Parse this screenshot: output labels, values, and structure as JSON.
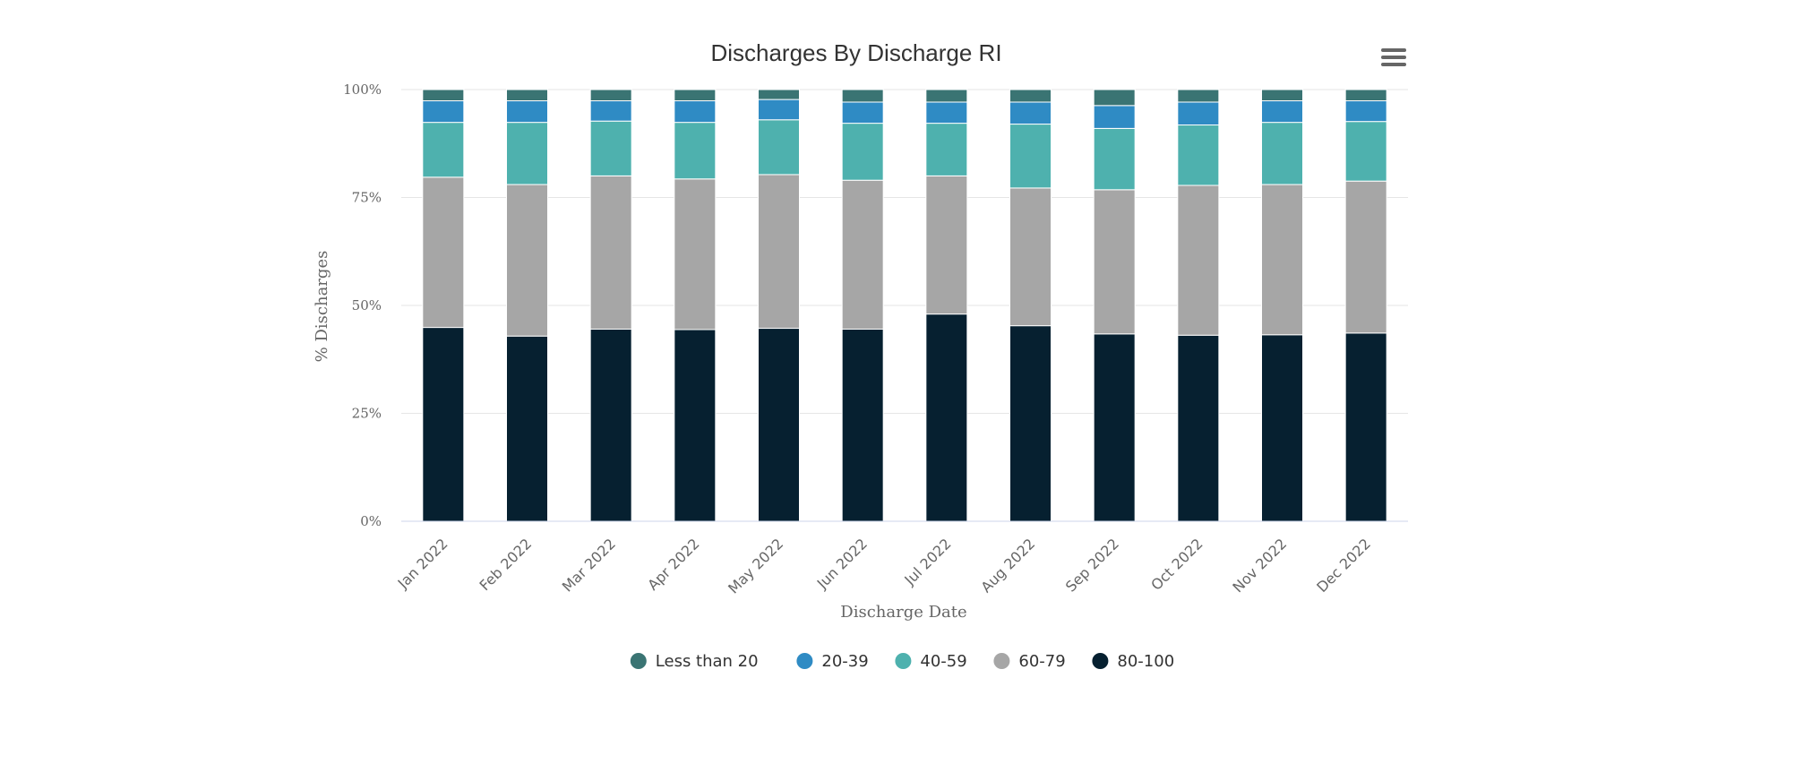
{
  "chart_data": {
    "type": "bar",
    "stacked": true,
    "normalized_percent": true,
    "title": "Discharges By Discharge RI",
    "xlabel": "Discharge Date",
    "ylabel": "% Discharges",
    "ylim": [
      0,
      100
    ],
    "yticks": [
      "0%",
      "25%",
      "50%",
      "75%",
      "100%"
    ],
    "grid": true,
    "legend_position": "bottom",
    "categories": [
      "Jan 2022",
      "Feb 2022",
      "Mar 2022",
      "Apr 2022",
      "May 2022",
      "Jun 2022",
      "Jul 2022",
      "Aug 2022",
      "Sep 2022",
      "Oct 2022",
      "Nov 2022",
      "Dec 2022"
    ],
    "series": [
      {
        "name": "Less than 20",
        "color": "#3a7473",
        "values": [
          2.6,
          2.6,
          2.6,
          2.6,
          2.3,
          2.9,
          2.9,
          2.9,
          3.7,
          2.9,
          2.6,
          2.6
        ]
      },
      {
        "name": "20-39",
        "color": "#2f8bc4",
        "values": [
          5.0,
          5.0,
          4.7,
          5.0,
          4.7,
          4.9,
          4.9,
          5.1,
          5.3,
          5.3,
          5.0,
          4.8
        ]
      },
      {
        "name": "40-59",
        "color": "#4eb1ae",
        "values": [
          12.7,
          14.4,
          12.7,
          13.1,
          12.7,
          13.2,
          12.2,
          14.8,
          14.2,
          14.0,
          14.4,
          13.8
        ]
      },
      {
        "name": "60-79",
        "color": "#a6a6a6",
        "values": [
          34.8,
          35.1,
          35.5,
          34.9,
          35.6,
          34.5,
          32.0,
          31.9,
          33.4,
          34.7,
          34.8,
          35.2
        ]
      },
      {
        "name": "80-100",
        "color": "#062030",
        "values": [
          44.9,
          42.9,
          44.5,
          44.4,
          44.7,
          44.5,
          48.0,
          45.3,
          43.4,
          43.1,
          43.2,
          43.6
        ]
      }
    ]
  },
  "ui": {
    "menu_icon": "hamburger-menu-icon"
  }
}
